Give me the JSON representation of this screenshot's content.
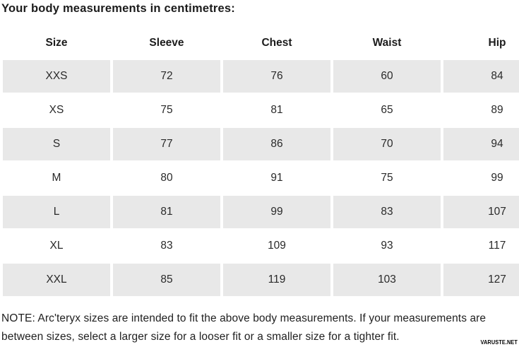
{
  "title": "Your body measurements in centimetres:",
  "table": {
    "columns": [
      "Size",
      "Sleeve",
      "Chest",
      "Waist",
      "Hip"
    ],
    "rows": [
      {
        "size": "XXS",
        "sleeve": "72",
        "chest": "76",
        "waist": "60",
        "hip": "84",
        "shaded": true
      },
      {
        "size": "XS",
        "sleeve": "75",
        "chest": "81",
        "waist": "65",
        "hip": "89",
        "shaded": false
      },
      {
        "size": "S",
        "sleeve": "77",
        "chest": "86",
        "waist": "70",
        "hip": "94",
        "shaded": true
      },
      {
        "size": "M",
        "sleeve": "80",
        "chest": "91",
        "waist": "75",
        "hip": "99",
        "shaded": false
      },
      {
        "size": "L",
        "sleeve": "81",
        "chest": "99",
        "waist": "83",
        "hip": "107",
        "shaded": true
      },
      {
        "size": "XL",
        "sleeve": "83",
        "chest": "109",
        "waist": "93",
        "hip": "117",
        "shaded": false
      },
      {
        "size": "XXL",
        "sleeve": "85",
        "chest": "119",
        "waist": "103",
        "hip": "127",
        "shaded": true
      }
    ]
  },
  "note": {
    "lines": [
      "NOTE: Arc'teryx sizes are intended to fit the above body measurements. If your measurements are",
      "between sizes, select a larger size for a looser fit or a smaller size for a tighter fit."
    ]
  },
  "watermark": "VARUSTE.NET",
  "colors": {
    "row_shaded": "#e8e8e8",
    "background": "#ffffff",
    "text": "#212121"
  }
}
